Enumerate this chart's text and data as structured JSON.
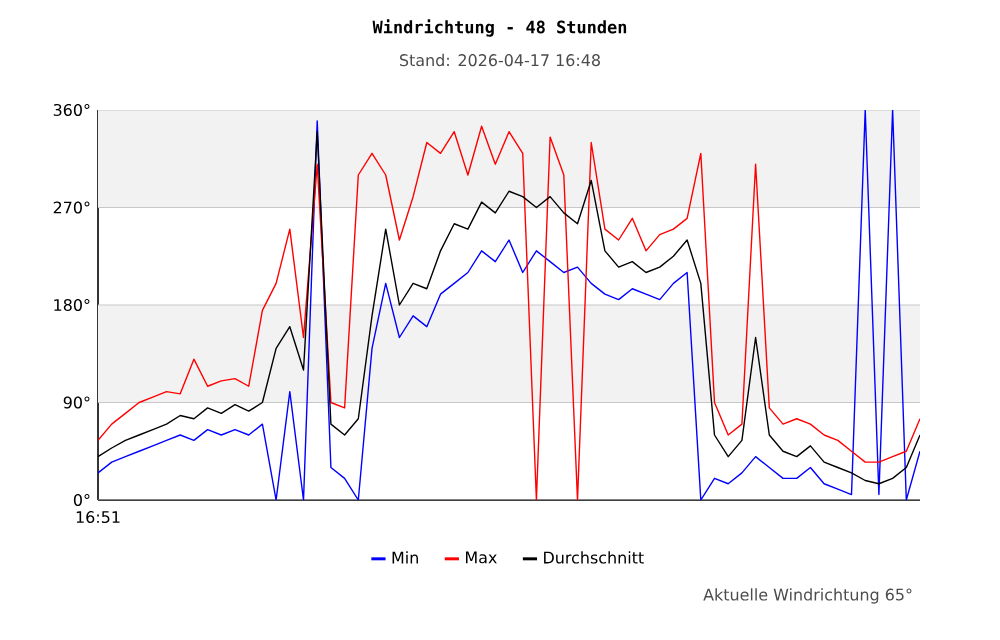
{
  "chart_data": {
    "type": "line",
    "title": "Windrichtung - 48 Stunden",
    "subtitle": "Stand: 2026-04-17 16:48",
    "annotations": [
      "16:51",
      "Aktuelle Windrichtung 65°"
    ],
    "categories": [
      null,
      null,
      null,
      null,
      null,
      null,
      null,
      null,
      null,
      null,
      null,
      null,
      null,
      null,
      null,
      null,
      null,
      null,
      null,
      null,
      null,
      null,
      null,
      null,
      null,
      null,
      null,
      null,
      null,
      null,
      null,
      null,
      null,
      null,
      null,
      null,
      null,
      null,
      null,
      null,
      null,
      null,
      null,
      null,
      null,
      null,
      null,
      null,
      null,
      null,
      null,
      null,
      null,
      null,
      null,
      null,
      null,
      null,
      null,
      null,
      null
    ],
    "ylim": [
      0,
      360
    ],
    "yticks": [
      {
        "value": 0,
        "label": "0°"
      },
      {
        "value": 90,
        "label": "90°"
      },
      {
        "value": 180,
        "label": "180°"
      },
      {
        "value": 270,
        "label": "270°"
      },
      {
        "value": 360,
        "label": "360°"
      }
    ],
    "grid": "y",
    "legend": "bottom",
    "bands": [
      {
        "axis": "y",
        "from": 90,
        "to": 180,
        "color": "#f2f2f2"
      },
      {
        "axis": "y",
        "from": 270,
        "to": 360,
        "color": "#f2f2f2"
      }
    ],
    "series": [
      {
        "name": "Min",
        "color": "#0000ff",
        "values": [
          25,
          35,
          40,
          45,
          50,
          55,
          60,
          55,
          65,
          60,
          65,
          60,
          70,
          0,
          100,
          0,
          350,
          30,
          20,
          0,
          140,
          200,
          150,
          170,
          160,
          190,
          200,
          210,
          230,
          220,
          240,
          210,
          230,
          220,
          210,
          215,
          200,
          190,
          185,
          195,
          190,
          185,
          200,
          210,
          0,
          20,
          15,
          25,
          40,
          30,
          20,
          20,
          30,
          15,
          10,
          5,
          360,
          5,
          360,
          0,
          45
        ]
      },
      {
        "name": "Max",
        "color": "#ff0000",
        "values": [
          55,
          70,
          80,
          90,
          95,
          100,
          98,
          130,
          105,
          110,
          112,
          105,
          175,
          200,
          250,
          150,
          310,
          90,
          85,
          300,
          320,
          300,
          240,
          280,
          330,
          320,
          340,
          300,
          345,
          310,
          340,
          320,
          0,
          335,
          300,
          0,
          330,
          250,
          240,
          260,
          230,
          245,
          250,
          260,
          320,
          90,
          60,
          70,
          310,
          85,
          70,
          75,
          70,
          60,
          55,
          45,
          35,
          35,
          40,
          45,
          75
        ]
      },
      {
        "name": "Durchschnitt",
        "color": "#000000",
        "values": [
          40,
          48,
          55,
          60,
          65,
          70,
          78,
          75,
          85,
          80,
          88,
          82,
          90,
          140,
          160,
          120,
          340,
          70,
          60,
          75,
          170,
          250,
          180,
          200,
          195,
          230,
          255,
          250,
          275,
          265,
          285,
          280,
          270,
          280,
          265,
          255,
          295,
          230,
          215,
          220,
          210,
          215,
          225,
          240,
          200,
          60,
          40,
          55,
          150,
          60,
          45,
          40,
          50,
          35,
          30,
          25,
          18,
          15,
          20,
          30,
          60
        ]
      }
    ]
  }
}
